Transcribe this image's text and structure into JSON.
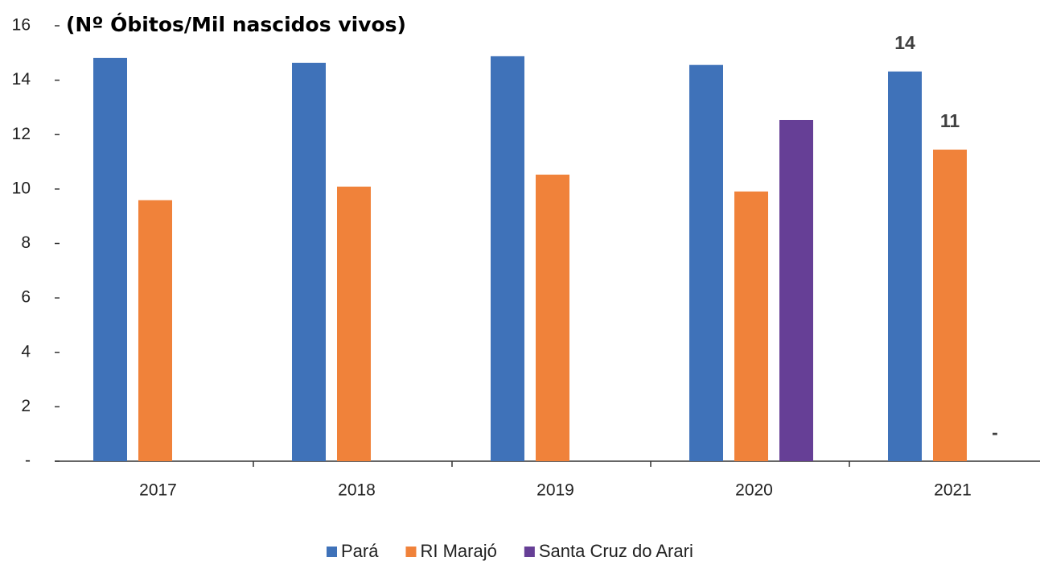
{
  "chart_data": {
    "type": "bar",
    "title": "(Nº Óbitos/Mil nascidos vivos)",
    "categories": [
      "2017",
      "2018",
      "2019",
      "2020",
      "2021"
    ],
    "series": [
      {
        "name": "Pará",
        "color": "#3f72b9",
        "values": [
          14.82,
          14.64,
          14.88,
          14.56,
          14.32
        ],
        "value_labels": [
          null,
          null,
          null,
          null,
          "14"
        ]
      },
      {
        "name": "RI Marajó",
        "color": "#f0823a",
        "values": [
          9.59,
          10.09,
          10.53,
          9.91,
          11.45
        ],
        "value_labels": [
          null,
          null,
          null,
          null,
          "11"
        ]
      },
      {
        "name": "Santa Cruz do Arari",
        "color": "#663f96",
        "values": [
          null,
          null,
          null,
          12.54,
          0
        ],
        "value_labels": [
          null,
          null,
          null,
          null,
          "-"
        ]
      }
    ],
    "ylim": [
      0,
      16
    ],
    "yticks": [
      {
        "value": 0,
        "label": "-"
      },
      2,
      4,
      6,
      8,
      10,
      12,
      14,
      16
    ],
    "legend": "bottom"
  }
}
